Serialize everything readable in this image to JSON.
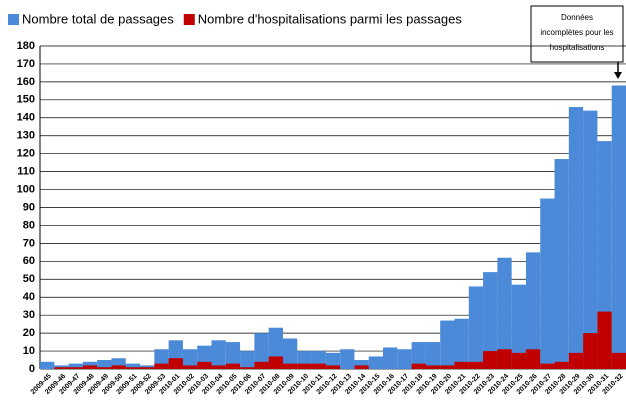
{
  "chart_data": {
    "type": "bar",
    "categories": [
      "2009-45",
      "2009-46",
      "2009-47",
      "2009-48",
      "2009-49",
      "2009-50",
      "2009-51",
      "2009-52",
      "2009-53",
      "2010-01",
      "2010-02",
      "2010-03",
      "2010-04",
      "2010-05",
      "2010-06",
      "2010-07",
      "2010-08",
      "2010-09",
      "2010-10",
      "2010-11",
      "2010-12",
      "2010-13",
      "2010-14",
      "2010-15",
      "2010-16",
      "2010-17",
      "2010-18",
      "2010-19",
      "2010-20",
      "2010-21",
      "2010-22",
      "2010-23",
      "2010-24",
      "2010-25",
      "2010-26",
      "2010-27",
      "2010-28",
      "2010-29",
      "2010-30",
      "2010-31",
      "2010-32"
    ],
    "series": [
      {
        "name": "Nombre total de passages",
        "color": "#4a8ad8",
        "values": [
          4,
          2,
          3,
          4,
          5,
          6,
          3,
          2,
          11,
          16,
          11,
          13,
          16,
          15,
          10,
          20,
          23,
          17,
          10,
          10,
          9,
          11,
          5,
          7,
          12,
          11,
          15,
          15,
          27,
          28,
          46,
          54,
          62,
          47,
          65,
          95,
          117,
          146,
          144,
          127,
          158
        ]
      },
      {
        "name": "Nombre d'hospitalisations parmi les passages",
        "color": "#c00000",
        "values": [
          0,
          1,
          1,
          2,
          1,
          2,
          1,
          1,
          3,
          6,
          2,
          4,
          2,
          3,
          1,
          4,
          7,
          3,
          3,
          3,
          2,
          0,
          2,
          0,
          0,
          0,
          3,
          2,
          2,
          4,
          4,
          10,
          11,
          9,
          11,
          3,
          4,
          9,
          20,
          32,
          9
        ]
      }
    ],
    "ylim": [
      0,
      180
    ],
    "yticks": [
      0,
      10,
      20,
      30,
      40,
      50,
      60,
      70,
      80,
      90,
      100,
      110,
      120,
      130,
      140,
      150,
      160,
      170,
      180
    ],
    "grid": true,
    "annotation": [
      "Données",
      "incomplètes pour les",
      "hospitalisations"
    ]
  }
}
